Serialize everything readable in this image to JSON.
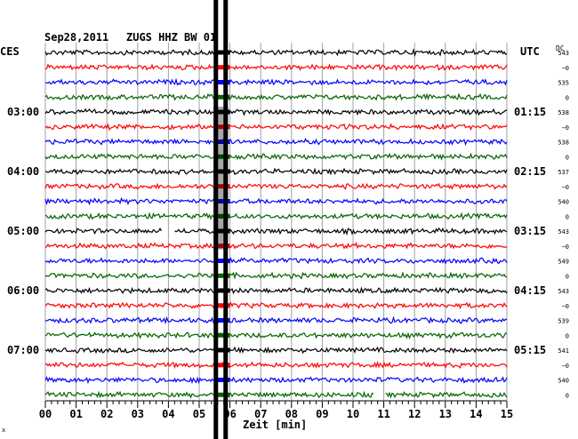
{
  "header": {
    "date": "Sep28,2011",
    "station": "ZUGS HHZ BW 01",
    "left_label": "CES",
    "right_label": "UTC",
    "dc_label": "DC",
    "x_axis_label": "Zeit [min]"
  },
  "chart_data": {
    "type": "line",
    "title": "Sep28,2011   ZUGS HHZ BW 01",
    "xlabel": "Zeit [min]",
    "xlim": [
      0,
      15
    ],
    "x_ticks": [
      "00",
      "01",
      "02",
      "03",
      "04",
      "05",
      "06",
      "07",
      "08",
      "09",
      "10",
      "11",
      "12",
      "13",
      "14",
      "15"
    ],
    "trace_colors": [
      "#000000",
      "#ff0000",
      "#0000ff",
      "#006400"
    ],
    "trace_count": 24,
    "left_time_labels": [
      {
        "trace": 4,
        "label": "03:00"
      },
      {
        "trace": 8,
        "label": "04:00"
      },
      {
        "trace": 12,
        "label": "05:00"
      },
      {
        "trace": 16,
        "label": "06:00"
      },
      {
        "trace": 20,
        "label": "07:00"
      }
    ],
    "right_time_labels": [
      {
        "trace": 0,
        "label": ""
      },
      {
        "trace": 4,
        "label": "01:15"
      },
      {
        "trace": 8,
        "label": "02:15"
      },
      {
        "trace": 12,
        "label": "03:15"
      },
      {
        "trace": 16,
        "label": "04:15"
      },
      {
        "trace": 20,
        "label": "05:15"
      }
    ],
    "dc_offsets": [
      "543",
      "−0",
      "535",
      "0",
      "538",
      "−0",
      "538",
      "0",
      "537",
      "−0",
      "540",
      "0",
      "543",
      "−0",
      "549",
      "0",
      "543",
      "−0",
      "539",
      "0",
      "541",
      "−0",
      "540",
      "0"
    ],
    "event": {
      "start_min": 5.6,
      "end_min": 6.0,
      "description": "large amplitude saturated signal"
    },
    "gaps": [
      {
        "trace": 12,
        "start_min": 3.8,
        "end_min": 4.2
      },
      {
        "trace": 23,
        "start_min": 10.7,
        "end_min": 11.05
      }
    ]
  }
}
